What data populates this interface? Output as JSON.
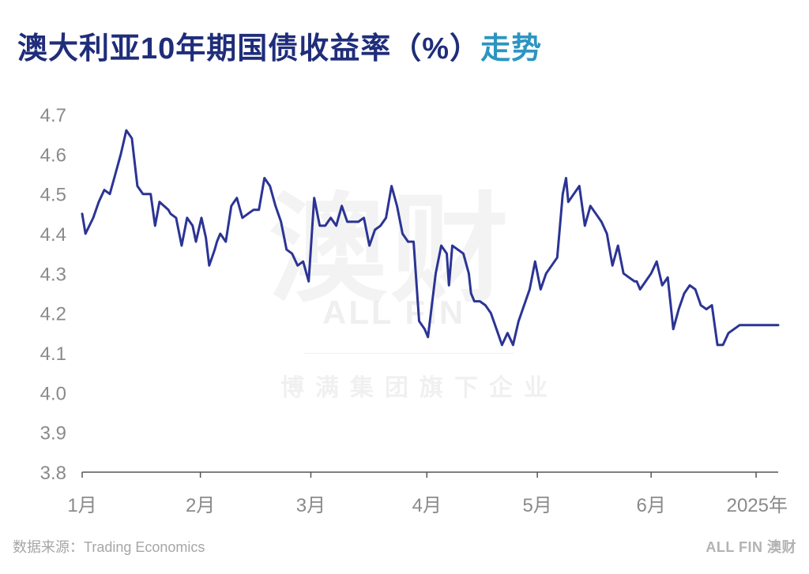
{
  "title": {
    "main": "澳大利亚10年期国债收益率（%）",
    "accent": "走势"
  },
  "watermark": {
    "main": "澳财",
    "sub": "ALL FIN",
    "tagline": "博满集团旗下企业"
  },
  "footer": {
    "source": "数据来源：Trading Economics",
    "logo": "ALL FIN 澳财"
  },
  "colors": {
    "title": "#1f2d7a",
    "accent": "#2c95c0",
    "line": "#2b3494",
    "axis": "#555555",
    "text": "#8a8a8a"
  },
  "chart_data": {
    "type": "line",
    "title": "澳大利亚10年期国债收益率（%）走势",
    "xlabel": "",
    "ylabel": "",
    "ylim": [
      3.8,
      4.7
    ],
    "yticks": [
      "4.7",
      "4.6",
      "4.5",
      "4.4",
      "4.3",
      "4.2",
      "4.1",
      "4.0",
      "3.9",
      "3.8"
    ],
    "xlim": [
      0,
      6.3
    ],
    "xticks": [
      {
        "x": 0,
        "label": "1月"
      },
      {
        "x": 1.07,
        "label": "2月"
      },
      {
        "x": 2.07,
        "label": "3月"
      },
      {
        "x": 3.12,
        "label": "4月"
      },
      {
        "x": 4.12,
        "label": "5月"
      },
      {
        "x": 5.15,
        "label": "6月"
      },
      {
        "x": 6.1,
        "label": "2025年"
      }
    ],
    "grid": false,
    "legend": "none",
    "series": [
      {
        "x": [
          0,
          0.03,
          0.1,
          0.15,
          0.2,
          0.25,
          0.3,
          0.35,
          0.4,
          0.45,
          0.5,
          0.55,
          0.58,
          0.62,
          0.66,
          0.7,
          0.78,
          0.8,
          0.85,
          0.9,
          0.95,
          1.0,
          1.03,
          1.08,
          1.12,
          1.15,
          1.2,
          1.22,
          1.25,
          1.3,
          1.35,
          1.4,
          1.45,
          1.5,
          1.55,
          1.6,
          1.65,
          1.7,
          1.75,
          1.8,
          1.85,
          1.9,
          1.95,
          2.0,
          2.05,
          2.1,
          2.15,
          2.2,
          2.25,
          2.3,
          2.35,
          2.4,
          2.45,
          2.5,
          2.55,
          2.6,
          2.65,
          2.7,
          2.75,
          2.8,
          2.85,
          2.9,
          2.95,
          3.0,
          3.05,
          3.1,
          3.13,
          3.2,
          3.25,
          3.3,
          3.32,
          3.35,
          3.4,
          3.45,
          3.5,
          3.52,
          3.55,
          3.6,
          3.65,
          3.7,
          3.75,
          3.8,
          3.85,
          3.9,
          3.95,
          4.0,
          4.05,
          4.1,
          4.15,
          4.2,
          4.25,
          4.3,
          4.35,
          4.38,
          4.4,
          4.45,
          4.5,
          4.55,
          4.6,
          4.65,
          4.7,
          4.75,
          4.8,
          4.85,
          4.9,
          4.95,
          5.0,
          5.02,
          5.05,
          5.1,
          5.15,
          5.2,
          5.25,
          5.3,
          5.35,
          5.4,
          5.45,
          5.5,
          5.55,
          5.6,
          5.65,
          5.7,
          5.75,
          5.8,
          5.85,
          5.9,
          5.95,
          6.0,
          6.05,
          6.1,
          6.15,
          6.2,
          6.25,
          6.3
        ],
        "values": [
          4.45,
          4.4,
          4.44,
          4.48,
          4.51,
          4.5,
          4.55,
          4.6,
          4.66,
          4.64,
          4.52,
          4.5,
          4.5,
          4.5,
          4.42,
          4.48,
          4.46,
          4.45,
          4.44,
          4.37,
          4.44,
          4.42,
          4.38,
          4.44,
          4.39,
          4.32,
          4.36,
          4.38,
          4.4,
          4.38,
          4.47,
          4.49,
          4.44,
          4.45,
          4.46,
          4.46,
          4.54,
          4.52,
          4.47,
          4.43,
          4.36,
          4.35,
          4.32,
          4.33,
          4.28,
          4.49,
          4.42,
          4.42,
          4.44,
          4.42,
          4.47,
          4.43,
          4.43,
          4.43,
          4.44,
          4.37,
          4.41,
          4.42,
          4.44,
          4.52,
          4.47,
          4.4,
          4.38,
          4.38,
          4.18,
          4.16,
          4.14,
          4.3,
          4.37,
          4.35,
          4.27,
          4.37,
          4.36,
          4.35,
          4.3,
          4.25,
          4.23,
          4.23,
          4.22,
          4.2,
          4.16,
          4.12,
          4.15,
          4.12,
          4.18,
          4.22,
          4.26,
          4.33,
          4.26,
          4.3,
          4.32,
          4.34,
          4.5,
          4.54,
          4.48,
          4.5,
          4.52,
          4.42,
          4.47,
          4.45,
          4.43,
          4.4,
          4.32,
          4.37,
          4.3,
          4.29,
          4.28,
          4.28,
          4.26,
          4.28,
          4.3,
          4.33,
          4.27,
          4.29,
          4.16,
          4.21,
          4.25,
          4.27,
          4.26,
          4.22,
          4.21,
          4.22,
          4.12,
          4.12,
          4.15,
          4.16,
          4.17,
          4.17,
          4.17,
          4.17,
          4.17,
          4.17,
          4.17,
          4.17
        ]
      }
    ]
  }
}
